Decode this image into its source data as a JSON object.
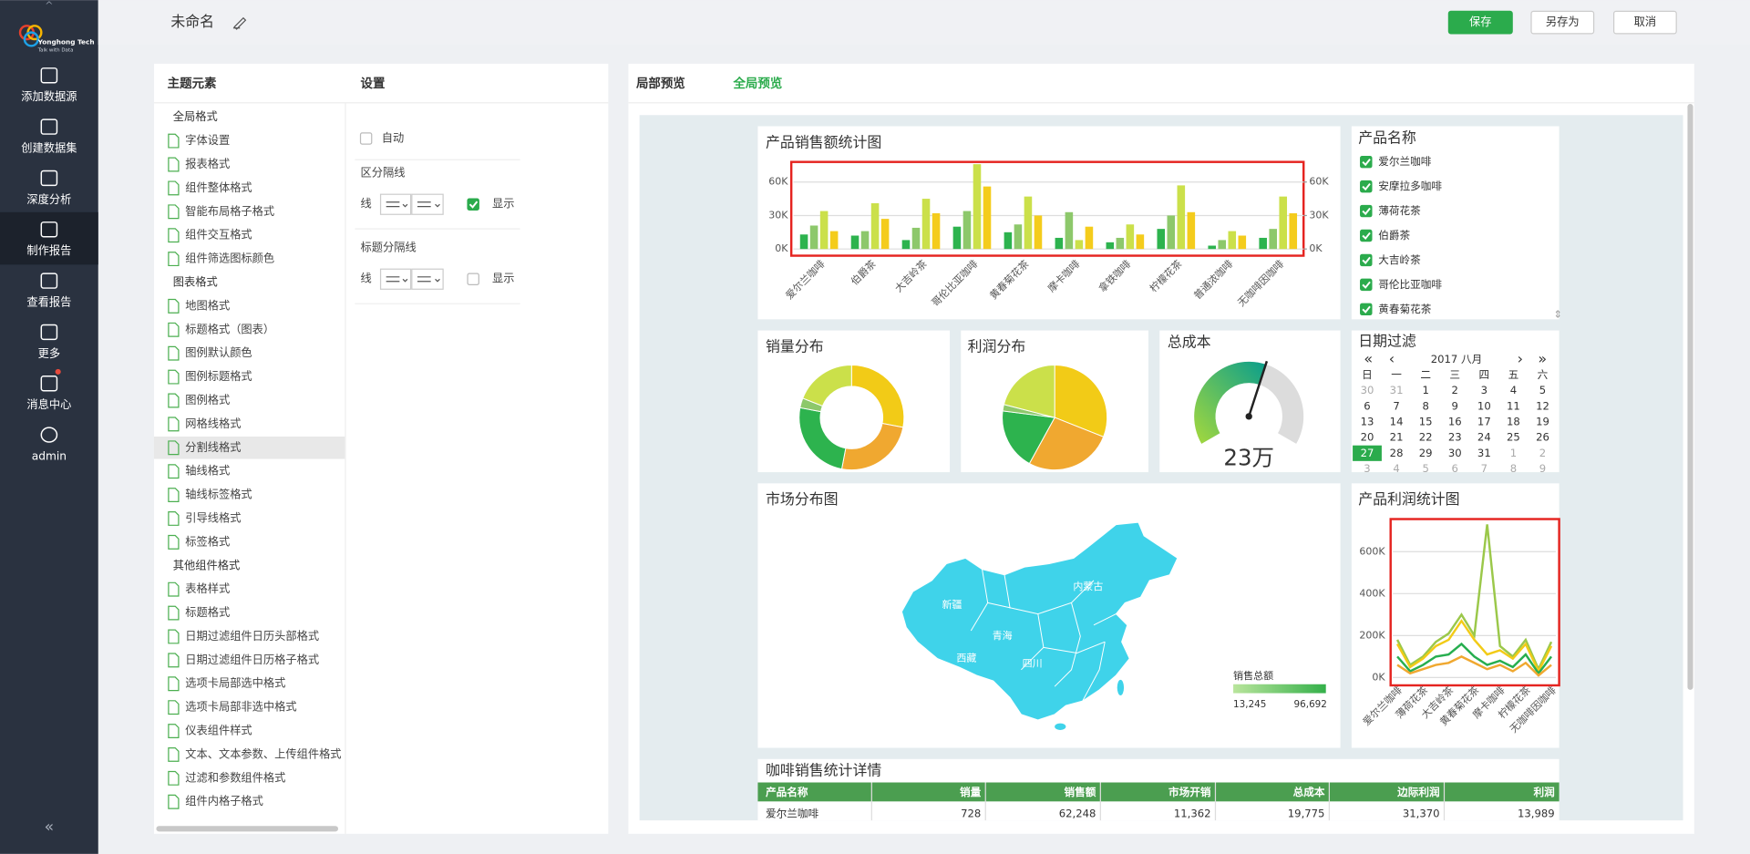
{
  "header": {
    "title": "未命名",
    "buttons": [
      "保存",
      "另存为",
      "取消"
    ]
  },
  "sidebar": {
    "logo": [
      "Yonghong Tech",
      "Talk with Data"
    ],
    "items": [
      "添加数据源",
      "创建数据集",
      "深度分析",
      "制作报告",
      "查看报告",
      "更多",
      "消息中心",
      "admin"
    ],
    "active": 3
  },
  "theme_panel": {
    "title": "主题元素",
    "groups": [
      {
        "name": "全局格式",
        "items": [
          "字体设置",
          "报表格式",
          "组件整体格式",
          "智能布局格子格式",
          "组件交互格式",
          "组件筛选图标颜色"
        ]
      },
      {
        "name": "图表格式",
        "items": [
          "地图格式",
          "标题格式（图表）",
          "图例默认颜色",
          "图例标题格式",
          "图例格式",
          "网格线格式",
          "分割线格式",
          "轴线格式",
          "轴线标签格式",
          "引导线格式",
          "标签格式"
        ]
      },
      {
        "name": "其他组件格式",
        "items": [
          "表格样式",
          "标题格式",
          "日期过滤组件日历头部格式",
          "日期过滤组件日历格子格式",
          "选项卡局部选中格式",
          "选项卡局部非选中格式",
          "仪表组件样式",
          "文本、文本参数、上传组件格式",
          "过滤和参数组件格式",
          "组件内格子格式"
        ]
      }
    ],
    "selected": [
      1,
      6
    ]
  },
  "settings_panel": {
    "title": "设置",
    "auto": "自动",
    "sections": [
      {
        "title": "区分隔线",
        "line": "线",
        "show": "显示",
        "checked": true
      },
      {
        "title": "标题分隔线",
        "line": "线",
        "show": "显示",
        "checked": false
      }
    ]
  },
  "preview": {
    "tabs": [
      "局部预览",
      "全局预览"
    ],
    "active": 1
  },
  "chart_data": [
    {
      "type": "bar",
      "title": "产品销售额统计图",
      "categories": [
        "爱尔兰咖啡",
        "伯爵茶",
        "大吉岭茶",
        "哥伦比亚咖啡",
        "黄春菊花茶",
        "摩卡咖啡",
        "拿铁咖啡",
        "柠檬花茶",
        "普通浓咖啡",
        "无咖啡因咖啡"
      ],
      "series": [
        {
          "color": "#2db34e",
          "values": [
            13000,
            12000,
            8000,
            20000,
            15000,
            10000,
            6000,
            18000,
            3000,
            10000
          ]
        },
        {
          "color": "#8dc86b",
          "values": [
            21000,
            16000,
            19000,
            34000,
            22000,
            33000,
            10000,
            30000,
            8000,
            18000
          ]
        },
        {
          "color": "#cbe04a",
          "values": [
            34000,
            41000,
            45000,
            76000,
            47000,
            8000,
            22000,
            57000,
            16000,
            47000
          ]
        },
        {
          "color": "#f4cc1c",
          "values": [
            16000,
            27000,
            32000,
            56000,
            30000,
            20000,
            13000,
            33000,
            12000,
            32000
          ]
        }
      ],
      "ylim": [
        0,
        78000
      ],
      "yticks": [
        {
          "value": 0,
          "label": "0K"
        },
        {
          "value": 30000,
          "label": "30K"
        },
        {
          "value": 60000,
          "label": "60K"
        }
      ],
      "y2lim": [
        0,
        78000
      ],
      "y2ticks": [
        {
          "value": 0,
          "label": "0K"
        },
        {
          "value": 30000,
          "label": "30K"
        },
        {
          "value": 60000,
          "label": "60K"
        }
      ],
      "grid": true
    },
    {
      "type": "donut",
      "title": "销量分布",
      "values": [
        28,
        25,
        25,
        3,
        19
      ],
      "colors": [
        "#f2cb17",
        "#f0a830",
        "#2db34e",
        "#8dc86b",
        "#cbe04a"
      ]
    },
    {
      "type": "pie",
      "title": "利润分布",
      "values": [
        31,
        27,
        19,
        2,
        21
      ],
      "colors": [
        "#f2cb17",
        "#f0a830",
        "#2db34e",
        "#8dc86b",
        "#cbe04a"
      ]
    },
    {
      "type": "gauge",
      "title": "总成本",
      "values": [
        23
      ],
      "value_labels": [
        "23万"
      ],
      "ylim": [
        0,
        40
      ]
    },
    {
      "type": "map",
      "title": "市场分布图",
      "regions": [
        "新疆",
        "西藏",
        "青海",
        "四川",
        "内蒙古"
      ],
      "color": "#3fd3ea",
      "legend_title": "销售总额",
      "legend_ticks": [
        {
          "value": 13245,
          "label": "13,245"
        },
        {
          "value": 96692,
          "label": "96,692"
        }
      ],
      "legend_colors": [
        "#b9e59c",
        "#34b04a"
      ]
    },
    {
      "type": "line",
      "title": "产品利润统计图",
      "categories": [
        "爱尔兰咖啡",
        null,
        "薄荷花茶",
        null,
        "大吉岭茶",
        null,
        "黄春菊花茶",
        null,
        "摩卡咖啡",
        null,
        "柠檬花茶",
        null,
        "无咖啡因咖啡"
      ],
      "series": [
        {
          "color": "#9bc84a",
          "values": [
            180000,
            60000,
            100000,
            170000,
            210000,
            300000,
            200000,
            730000,
            150000,
            100000,
            180000,
            40000,
            170000
          ]
        },
        {
          "color": "#f2cb17",
          "values": [
            160000,
            50000,
            90000,
            150000,
            180000,
            270000,
            180000,
            110000,
            130000,
            90000,
            160000,
            30000,
            150000
          ]
        },
        {
          "color": "#27ae4f",
          "values": [
            100000,
            30000,
            60000,
            100000,
            110000,
            160000,
            100000,
            60000,
            80000,
            50000,
            110000,
            20000,
            100000
          ]
        },
        {
          "color": "#f0a830",
          "values": [
            60000,
            20000,
            40000,
            60000,
            70000,
            100000,
            70000,
            40000,
            60000,
            30000,
            70000,
            10000,
            60000
          ]
        }
      ],
      "ylim": [
        0,
        750000
      ],
      "yticks": [
        {
          "value": 0,
          "label": "0K"
        },
        {
          "value": 200000,
          "label": "200K"
        },
        {
          "value": 400000,
          "label": "400K"
        },
        {
          "value": 600000,
          "label": "600K"
        }
      ],
      "grid": true
    }
  ],
  "product_filter": {
    "title": "产品名称",
    "items": [
      "爱尔兰咖啡",
      "安摩拉多咖啡",
      "薄荷花茶",
      "伯爵茶",
      "大吉岭茶",
      "哥伦比亚咖啡",
      "黄春菊花茶"
    ],
    "checked": [
      true,
      true,
      true,
      true,
      true,
      true,
      true
    ]
  },
  "date_filter": {
    "title": "日期过滤",
    "month": "2017 八月",
    "weekdays": [
      "日",
      "一",
      "二",
      "三",
      "四",
      "五",
      "六"
    ],
    "weeks": [
      [
        30,
        31,
        1,
        2,
        3,
        4,
        5
      ],
      [
        6,
        7,
        8,
        9,
        10,
        11,
        12
      ],
      [
        13,
        14,
        15,
        16,
        17,
        18,
        19
      ],
      [
        20,
        21,
        22,
        23,
        24,
        25,
        26
      ],
      [
        27,
        28,
        29,
        30,
        31,
        1,
        2
      ],
      [
        3,
        4,
        5,
        6,
        7,
        8,
        9
      ]
    ],
    "selected": [
      4,
      0
    ]
  },
  "table": {
    "title": "咖啡销售统计详情",
    "columns": [
      "产品名称",
      "销量",
      "销售额",
      "市场开销",
      "总成本",
      "边际利润",
      "利润"
    ],
    "rows": [
      [
        "爱尔兰咖啡",
        "728",
        "62,248",
        "11,362",
        "19,775",
        "31,370",
        "13,989"
      ]
    ]
  }
}
